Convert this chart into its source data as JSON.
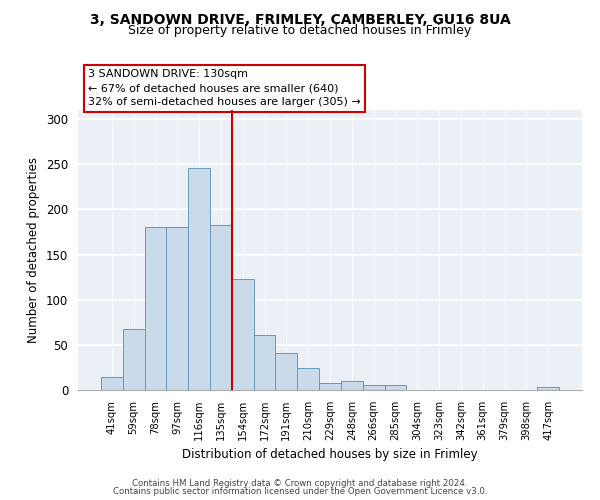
{
  "title1": "3, SANDOWN DRIVE, FRIMLEY, CAMBERLEY, GU16 8UA",
  "title2": "Size of property relative to detached houses in Frimley",
  "xlabel": "Distribution of detached houses by size in Frimley",
  "ylabel": "Number of detached properties",
  "bar_color": "#c9daea",
  "bar_edge_color": "#6699bb",
  "categories": [
    "41sqm",
    "59sqm",
    "78sqm",
    "97sqm",
    "116sqm",
    "135sqm",
    "154sqm",
    "172sqm",
    "191sqm",
    "210sqm",
    "229sqm",
    "248sqm",
    "266sqm",
    "285sqm",
    "304sqm",
    "323sqm",
    "342sqm",
    "361sqm",
    "379sqm",
    "398sqm",
    "417sqm"
  ],
  "values": [
    14,
    68,
    180,
    180,
    246,
    183,
    123,
    61,
    41,
    24,
    8,
    10,
    6,
    5,
    0,
    0,
    0,
    0,
    0,
    0,
    3
  ],
  "vline_x": 5.5,
  "vline_color": "#cc0000",
  "annotation_text": "3 SANDOWN DRIVE: 130sqm\n← 67% of detached houses are smaller (640)\n32% of semi-detached houses are larger (305) →",
  "annotation_box_color": "#cc0000",
  "ylim": [
    0,
    310
  ],
  "yticks": [
    0,
    50,
    100,
    150,
    200,
    250,
    300
  ],
  "footer1": "Contains HM Land Registry data © Crown copyright and database right 2024.",
  "footer2": "Contains public sector information licensed under the Open Government Licence v3.0."
}
